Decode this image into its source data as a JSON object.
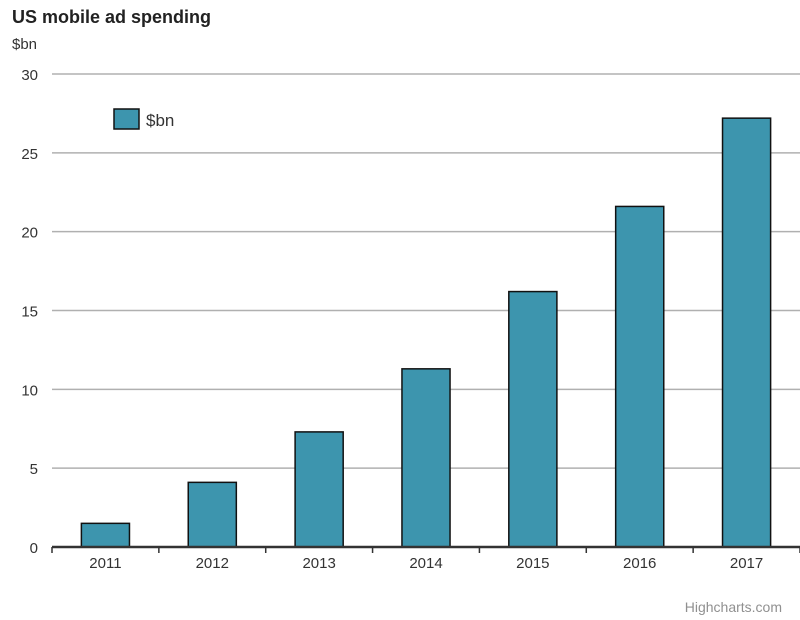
{
  "chart_data": {
    "type": "bar",
    "title": "US mobile ad spending",
    "ylabel": "$bn",
    "xlabel": "",
    "categories": [
      "2011",
      "2012",
      "2013",
      "2014",
      "2015",
      "2016",
      "2017"
    ],
    "series": [
      {
        "name": "$bn",
        "values": [
          1.5,
          4.1,
          7.3,
          11.3,
          16.2,
          21.6,
          27.2
        ]
      }
    ],
    "ylim": [
      0,
      30
    ],
    "yticks": [
      0,
      5,
      10,
      15,
      20,
      25,
      30
    ],
    "grid": true,
    "legend_position": "top-left",
    "colors": {
      "bar": "#3d95ae",
      "bar_border": "#111111",
      "grid": "#b0b0b0",
      "axis": "#333333"
    }
  },
  "credits": "Highcharts.com"
}
